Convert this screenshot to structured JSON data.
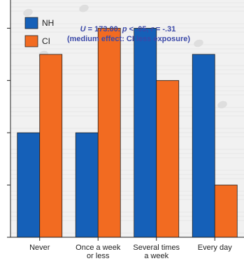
{
  "chart_data": {
    "type": "bar",
    "categories": [
      [
        "Never"
      ],
      [
        "Once a week",
        "or less"
      ],
      [
        "Several times",
        "a week"
      ],
      [
        "Every day"
      ]
    ],
    "series": [
      {
        "name": "NH",
        "values": [
          2,
          2,
          4,
          3.5
        ]
      },
      {
        "name": "CI",
        "values": [
          3.5,
          4,
          3,
          1
        ]
      }
    ],
    "ylim": [
      0,
      4.5
    ],
    "grid": false,
    "legend_position": "top-left",
    "colors": {
      "NH": "#1560b8",
      "CI": "#f26b21",
      "annotation": "#3b49a8"
    },
    "annotation": {
      "line1_stat": "U",
      "line1_rest": " = 173.00. ",
      "line1_p": "p",
      "line1_prest": " < .05, ",
      "line1_r": "r",
      "line1_rrest": " = -.31",
      "line2": "(medium effect: CI less exposure)"
    }
  }
}
